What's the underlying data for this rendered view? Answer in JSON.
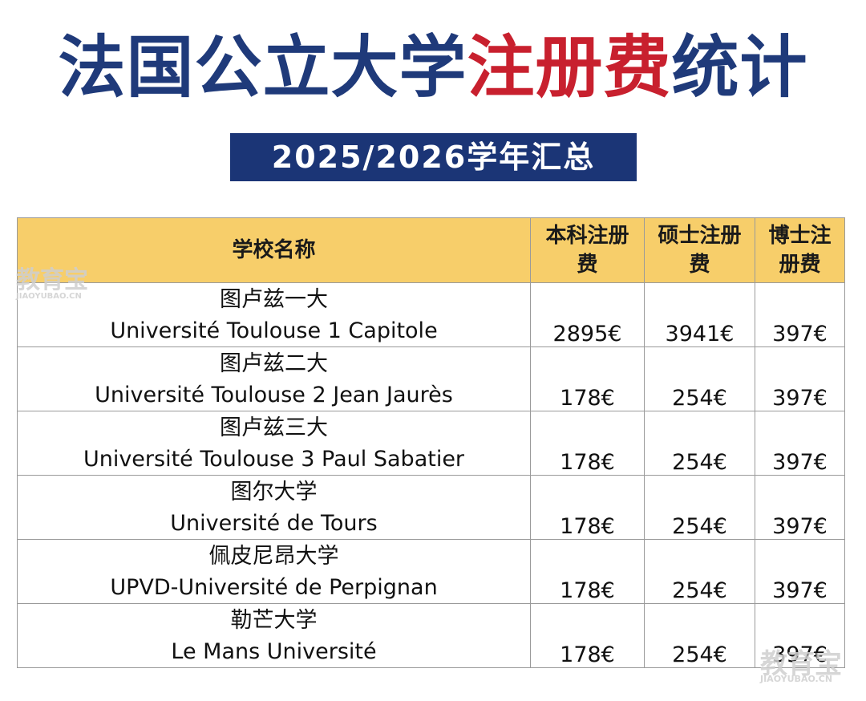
{
  "title": {
    "part1": "法国公立大学",
    "part2": "注册费",
    "part3": "统计"
  },
  "subtitle": "2025/2026学年汇总",
  "table": {
    "headers": {
      "school": "学校名称",
      "bachelor_line1": "本科注册",
      "bachelor_line2": "费",
      "master_line1": "硕士注册",
      "master_line2": "费",
      "phd_line1": "博士注",
      "phd_line2": "册费"
    },
    "rows": [
      {
        "name_cn": "图卢兹一大",
        "name_fr": "Université Toulouse 1 Capitole",
        "bachelor": "2895€",
        "master": "3941€",
        "phd": "397€"
      },
      {
        "name_cn": "图卢兹二大",
        "name_fr": "Université Toulouse 2 Jean Jaurès",
        "bachelor": "178€",
        "master": "254€",
        "phd": "397€"
      },
      {
        "name_cn": "图卢兹三大",
        "name_fr": "Université Toulouse 3 Paul Sabatier",
        "bachelor": "178€",
        "master": "254€",
        "phd": "397€"
      },
      {
        "name_cn": "图尔大学",
        "name_fr": "Université de Tours",
        "bachelor": "178€",
        "master": "254€",
        "phd": "397€"
      },
      {
        "name_cn": "佩皮尼昂大学",
        "name_fr": "UPVD-Université de Perpignan",
        "bachelor": "178€",
        "master": "254€",
        "phd": "397€"
      },
      {
        "name_cn": "勒芒大学",
        "name_fr": "Le Mans Université",
        "bachelor": "178€",
        "master": "254€",
        "phd": "397€"
      }
    ]
  },
  "watermark": {
    "brand": "教育宝",
    "site": "JIAOYUBAO.CN"
  },
  "colors": {
    "title_blue": "#1f3a7a",
    "title_red": "#c8202e",
    "header_bg": "#f7ce6a",
    "banner_bg": "#1b3576"
  }
}
